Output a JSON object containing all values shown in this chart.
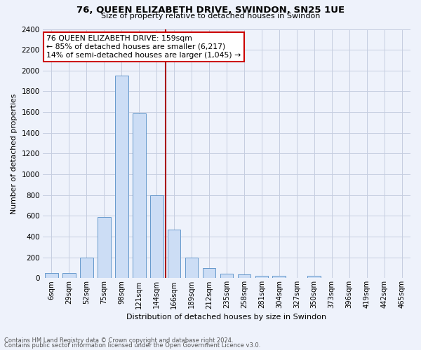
{
  "title1": "76, QUEEN ELIZABETH DRIVE, SWINDON, SN25 1UE",
  "title2": "Size of property relative to detached houses in Swindon",
  "xlabel": "Distribution of detached houses by size in Swindon",
  "ylabel": "Number of detached properties",
  "bar_labels": [
    "6sqm",
    "29sqm",
    "52sqm",
    "75sqm",
    "98sqm",
    "121sqm",
    "144sqm",
    "166sqm",
    "189sqm",
    "212sqm",
    "235sqm",
    "258sqm",
    "281sqm",
    "304sqm",
    "327sqm",
    "350sqm",
    "373sqm",
    "396sqm",
    "419sqm",
    "442sqm",
    "465sqm"
  ],
  "bar_values": [
    50,
    50,
    200,
    590,
    1950,
    1590,
    800,
    470,
    200,
    100,
    45,
    35,
    20,
    20,
    0,
    20,
    0,
    0,
    0,
    0,
    0
  ],
  "bar_color": "#ccddf5",
  "bar_edge_color": "#6699cc",
  "vline_x": 7.5,
  "vline_color": "#aa0000",
  "annotation_text": "76 QUEEN ELIZABETH DRIVE: 159sqm\n← 85% of detached houses are smaller (6,217)\n14% of semi-detached houses are larger (1,045) →",
  "annotation_box_color": "white",
  "annotation_box_edge_color": "#cc0000",
  "ylim": [
    0,
    2400
  ],
  "yticks": [
    0,
    200,
    400,
    600,
    800,
    1000,
    1200,
    1400,
    1600,
    1800,
    2000,
    2200,
    2400
  ],
  "footer1": "Contains HM Land Registry data © Crown copyright and database right 2024.",
  "footer2": "Contains public sector information licensed under the Open Government Licence v3.0.",
  "background_color": "#eef2fb",
  "grid_color": "#c5cde0",
  "fig_width": 6.0,
  "fig_height": 5.0,
  "fig_dpi": 100
}
